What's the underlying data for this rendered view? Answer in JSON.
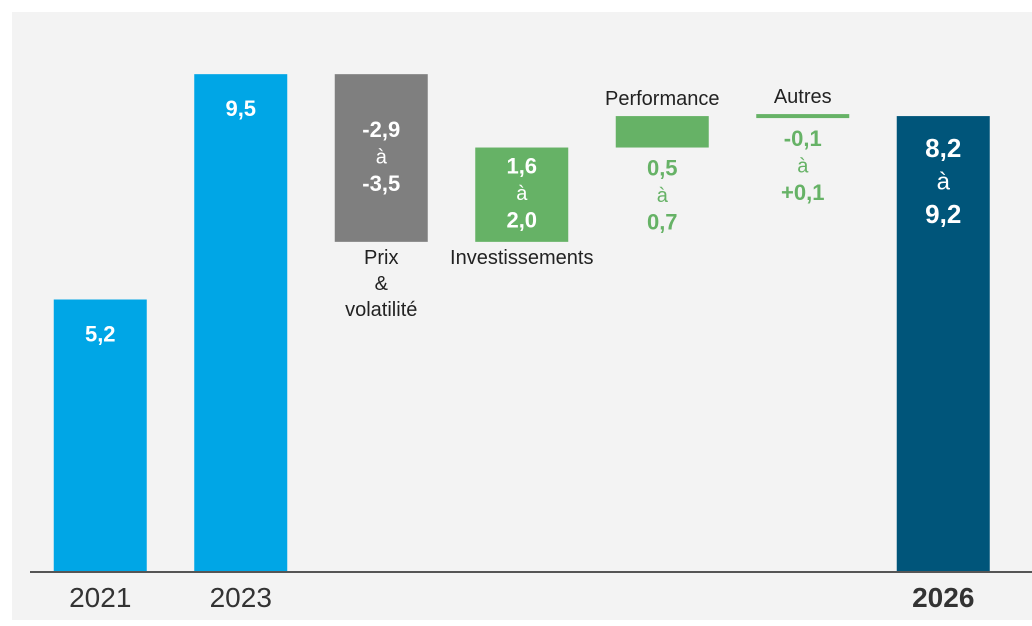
{
  "chart_data": {
    "type": "waterfall",
    "categories": [
      "2021",
      "2023",
      "Prix\n&\nvolatilité",
      "Investissements",
      "Performance",
      "Autres",
      "2026"
    ],
    "bar_kinds": [
      "total",
      "total",
      "delta",
      "delta",
      "delta",
      "delta",
      "total"
    ],
    "values": [
      5.2,
      9.5,
      -2.9,
      1.6,
      0.5,
      -0.1,
      8.2
    ],
    "values_to": [
      null,
      null,
      -3.5,
      2.0,
      0.7,
      0.1,
      9.2
    ],
    "value_labels": [
      "5,2",
      "9,5",
      "-2,9",
      "1,6",
      "0,5",
      "-0,1",
      "8,2"
    ],
    "value_labels_to": [
      null,
      null,
      "-3,5",
      "2,0",
      "0,7",
      "+0,1",
      "9,2"
    ],
    "range_word": "à",
    "colors": [
      "#00a6e6",
      "#00a6e6",
      "#7f7f7f",
      "#66b266",
      "#66b266",
      "#66b266",
      "#00557a"
    ],
    "ylim": [
      0,
      10.4
    ]
  }
}
